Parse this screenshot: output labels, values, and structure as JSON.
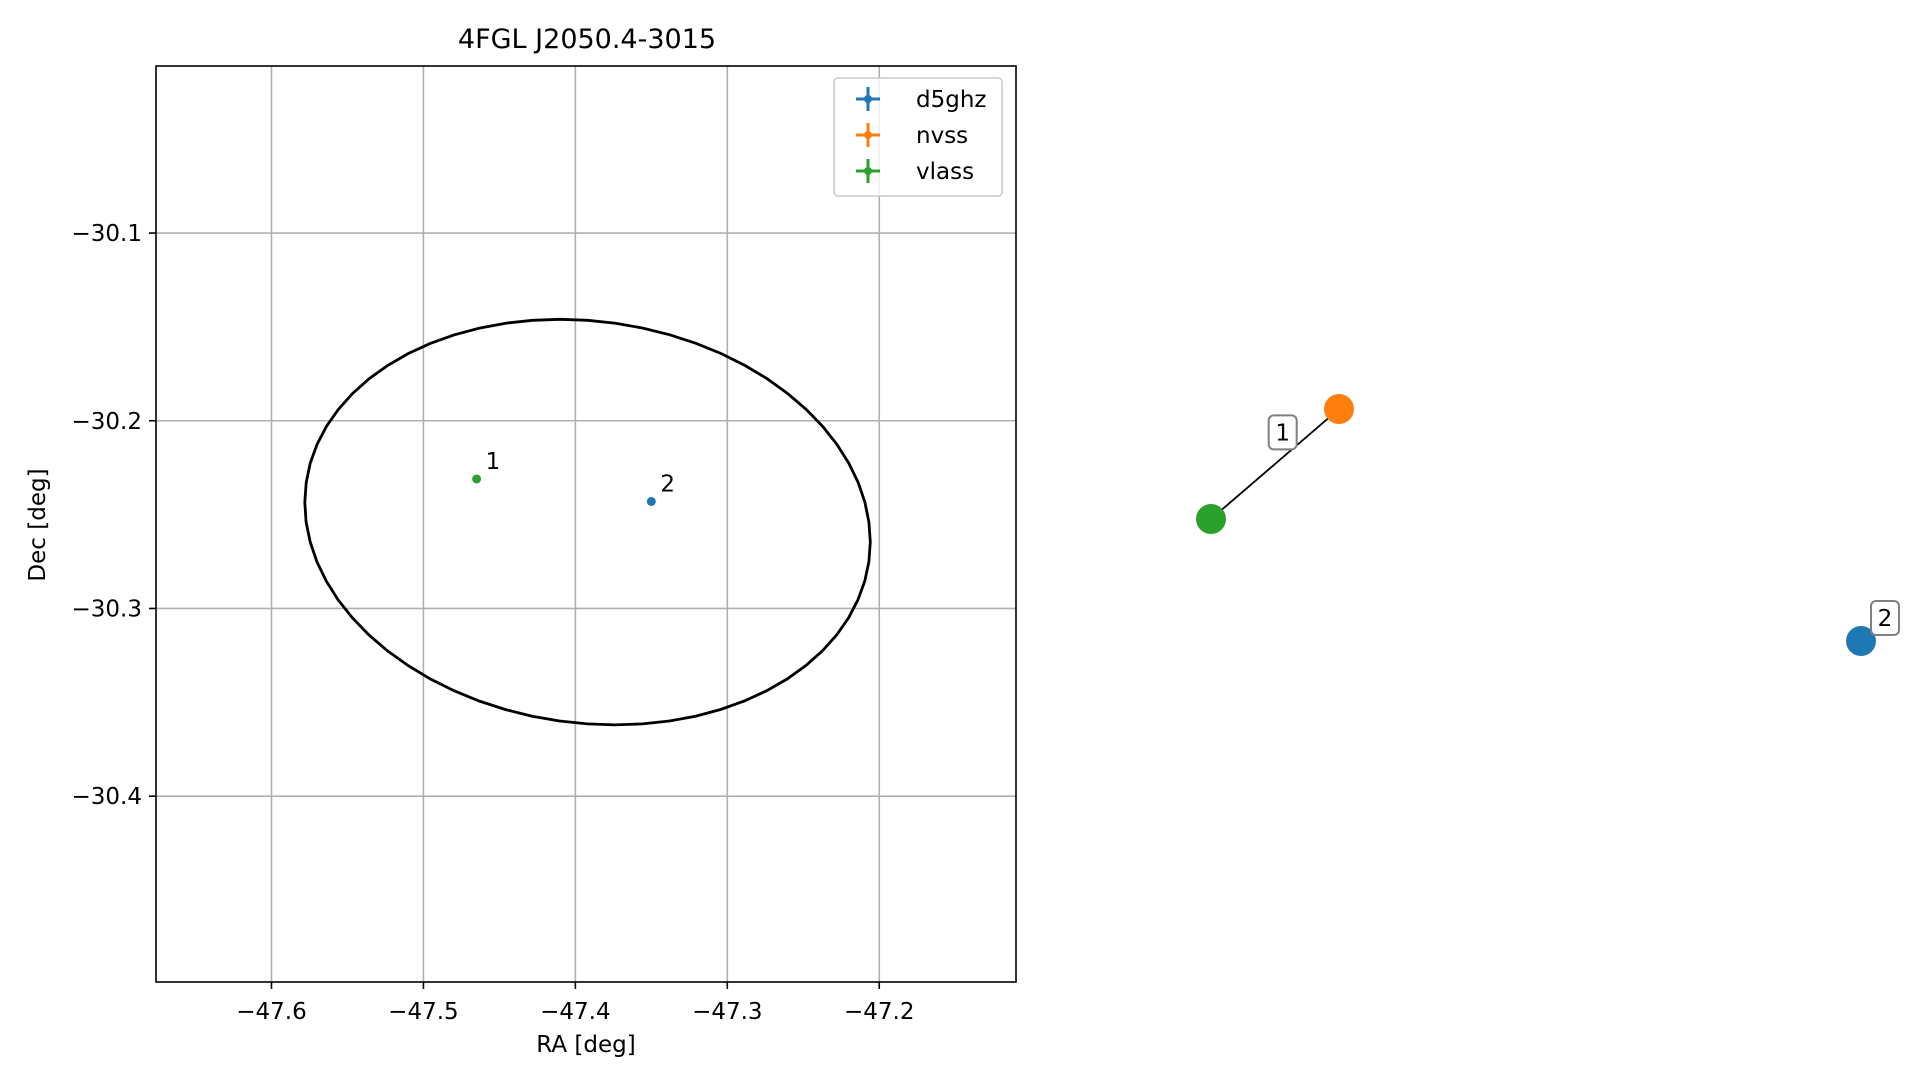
{
  "chart_data": [
    {
      "type": "scatter",
      "title": "4FGL J2050.4-3015",
      "xlabel": "RA [deg]",
      "ylabel": "Dec [deg]",
      "xlim": [
        -47.676,
        -47.11
      ],
      "ylim": [
        -30.499,
        -30.011
      ],
      "xticks": [
        -47.6,
        -47.5,
        -47.4,
        -47.3,
        -47.2
      ],
      "yticks": [
        -30.1,
        -30.2,
        -30.3,
        -30.4
      ],
      "xtick_labels": [
        "−47.6",
        "−47.5",
        "−47.4",
        "−47.3",
        "−47.2"
      ],
      "ytick_labels": [
        "−30.1",
        "−30.2",
        "−30.3",
        "−30.4"
      ],
      "grid": true,
      "legend_position": "top-right",
      "series": [
        {
          "name": "d5ghz",
          "color": "#1f77b4",
          "points": [
            {
              "x": -47.35,
              "y": -30.243,
              "label": "2"
            }
          ]
        },
        {
          "name": "nvss",
          "color": "#ff7f0e",
          "points": []
        },
        {
          "name": "vlass",
          "color": "#2ca02c",
          "points": [
            {
              "x": -47.465,
              "y": -30.231,
              "label": "1"
            }
          ]
        }
      ],
      "ellipse": {
        "center": [
          -47.392,
          -30.254
        ],
        "width_ra": 0.374,
        "height_dec": 0.214,
        "color": "#000000"
      }
    },
    {
      "type": "network",
      "nodes": [
        {
          "id": "vlass",
          "color": "#2ca02c"
        },
        {
          "id": "nvss",
          "color": "#ff7f0e"
        },
        {
          "id": "d5ghz",
          "color": "#1f77b4"
        }
      ],
      "edges": [
        {
          "source": "vlass",
          "target": "nvss",
          "label": "1"
        }
      ],
      "node_labels": [
        {
          "node": "d5ghz",
          "label": "2"
        }
      ]
    }
  ]
}
